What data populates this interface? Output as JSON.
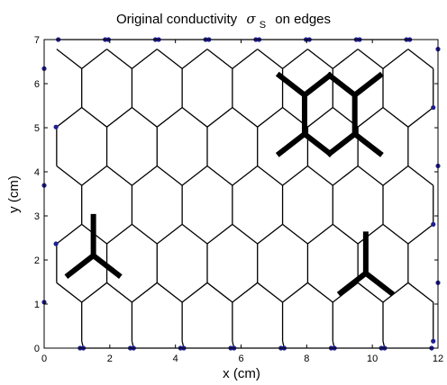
{
  "chart_data": {
    "type": "network",
    "title_prefix": "Original conductivity",
    "title_symbol": "σ",
    "title_subscript": "S",
    "title_suffix": "on edges",
    "xlabel": "x (cm)",
    "ylabel": "y (cm)",
    "xlim": [
      0,
      12
    ],
    "ylim": [
      0,
      7
    ],
    "xticks": [
      "0",
      "2",
      "4",
      "6",
      "8",
      "10",
      "12"
    ],
    "yticks": [
      "0",
      "1",
      "2",
      "3",
      "4",
      "5",
      "6",
      "7"
    ],
    "grid": false,
    "lattice": "hexagonal honeycomb, edge length ~0.58 cm, flat-topped edges at y=0 and y=7",
    "edge_color": "#000000",
    "boundary_node_color": "#1f1f8f",
    "high_conductivity_regions": [
      {
        "description": "hexagon ring with radiating edges",
        "center": [
          8.7,
          5.3
        ]
      },
      {
        "description": "tri-junction",
        "center": [
          1.5,
          2.1
        ]
      },
      {
        "description": "tri-junction",
        "center": [
          9.8,
          1.7
        ]
      }
    ]
  }
}
